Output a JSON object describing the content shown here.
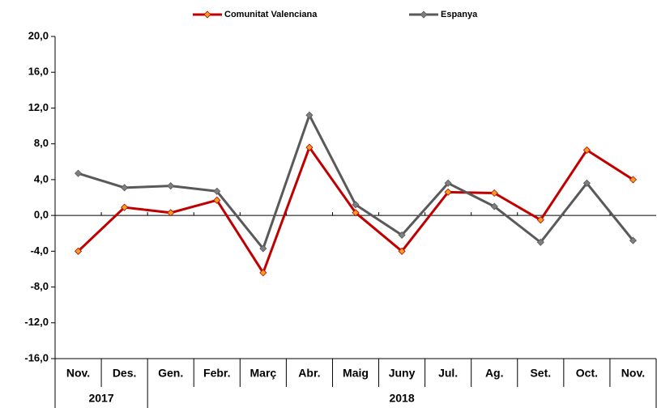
{
  "chart_data": {
    "type": "line",
    "categories": [
      "Nov.",
      "Des.",
      "Gen.",
      "Febr.",
      "Març",
      "Abr.",
      "Maig",
      "Juny",
      "Jul.",
      "Ag.",
      "Set.",
      "Oct.",
      "Nov."
    ],
    "years": [
      "2017",
      null,
      "2018",
      null,
      null,
      null,
      null,
      null,
      null,
      null,
      null,
      null,
      null
    ],
    "series": [
      {
        "name": "Comunitat Valenciana",
        "color": "#c00000",
        "marker_color": "#f0a020",
        "values": [
          -4.0,
          0.9,
          0.3,
          1.7,
          -6.4,
          7.6,
          0.3,
          -4.0,
          2.6,
          2.5,
          -0.5,
          7.3,
          4.0
        ]
      },
      {
        "name": "Espanya",
        "color": "#595959",
        "marker_color": "#7f7f7f",
        "values": [
          4.7,
          3.1,
          3.3,
          2.7,
          -3.7,
          11.2,
          1.2,
          -2.2,
          3.6,
          1.0,
          -3.0,
          3.6,
          -2.8
        ]
      }
    ],
    "ylim": [
      -16,
      20
    ],
    "yticks": [
      {
        "value": -16,
        "label": "-16,0"
      },
      {
        "value": -12,
        "label": "-12,0"
      },
      {
        "value": -8,
        "label": "-8,0"
      },
      {
        "value": -4,
        "label": "-4,0"
      },
      {
        "value": 0,
        "label": "0,0"
      },
      {
        "value": 4,
        "label": "4,0"
      },
      {
        "value": 8,
        "label": "8,0"
      },
      {
        "value": 12,
        "label": "12,0"
      },
      {
        "value": 16,
        "label": "16,0"
      },
      {
        "value": 20,
        "label": "20,0"
      }
    ],
    "legend": "top"
  }
}
